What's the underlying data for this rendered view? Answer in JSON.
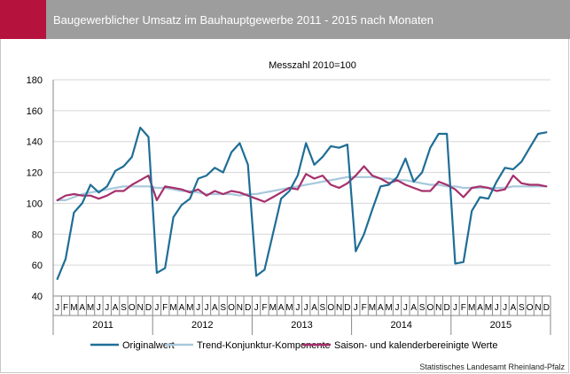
{
  "header": {
    "title": "Baugewerblicher Umsatz im Bauhauptgewerbe 2011 - 2015 nach Monaten",
    "accent_color": "#b5123e",
    "bar_color": "#9d9d9d"
  },
  "source": "Statistisches Landesamt Rheinland-Pfalz",
  "chart_data": {
    "type": "line",
    "subtitle": "Messzahl 2010=100",
    "ylim": [
      40,
      180
    ],
    "yticks": [
      40,
      60,
      80,
      100,
      120,
      140,
      160,
      180
    ],
    "grid": true,
    "legend_position": "bottom",
    "month_labels": [
      "J",
      "F",
      "M",
      "A",
      "M",
      "J",
      "J",
      "A",
      "S",
      "O",
      "N",
      "D"
    ],
    "years": [
      "2011",
      "2012",
      "2013",
      "2014",
      "2015"
    ],
    "series": [
      {
        "name": "Originalwert",
        "color": "#1f6e96",
        "values": [
          51,
          64,
          94,
          100,
          112,
          107,
          111,
          121,
          124,
          130,
          149,
          143,
          55,
          58,
          91,
          99,
          103,
          116,
          118,
          123,
          120,
          133,
          139,
          125,
          53,
          57,
          80,
          103,
          108,
          118,
          139,
          125,
          130,
          137,
          136,
          138,
          69,
          80,
          96,
          111,
          112,
          117,
          129,
          114,
          120,
          136,
          145,
          145,
          61,
          62,
          95,
          104,
          103,
          114,
          123,
          122,
          127,
          136,
          145,
          146
        ]
      },
      {
        "name": "Trend-Konjunktur-Komponente",
        "color": "#a7c8dc",
        "values": [
          102,
          102,
          104,
          106,
          107,
          108,
          109,
          110,
          111,
          111,
          111,
          111,
          110,
          110,
          109,
          108,
          108,
          107,
          106,
          106,
          106,
          106,
          105,
          106,
          106,
          107,
          108,
          109,
          110,
          111,
          112,
          113,
          114,
          115,
          116,
          117,
          117,
          117,
          117,
          116,
          116,
          115,
          115,
          114,
          113,
          112,
          112,
          111,
          111,
          110,
          110,
          110,
          110,
          110,
          110,
          111,
          111,
          111,
          111,
          111
        ]
      },
      {
        "name": "Saison- und kalenderbereinigte Werte",
        "color": "#a6306c",
        "values": [
          102,
          105,
          106,
          105,
          105,
          103,
          105,
          108,
          108,
          112,
          115,
          118,
          102,
          111,
          110,
          109,
          107,
          109,
          105,
          108,
          106,
          108,
          107,
          105,
          103,
          101,
          104,
          107,
          110,
          109,
          119,
          116,
          118,
          112,
          110,
          113,
          118,
          124,
          118,
          116,
          113,
          115,
          112,
          110,
          108,
          108,
          114,
          112,
          109,
          104,
          110,
          111,
          110,
          108,
          109,
          118,
          113,
          112,
          112,
          111
        ]
      }
    ]
  }
}
